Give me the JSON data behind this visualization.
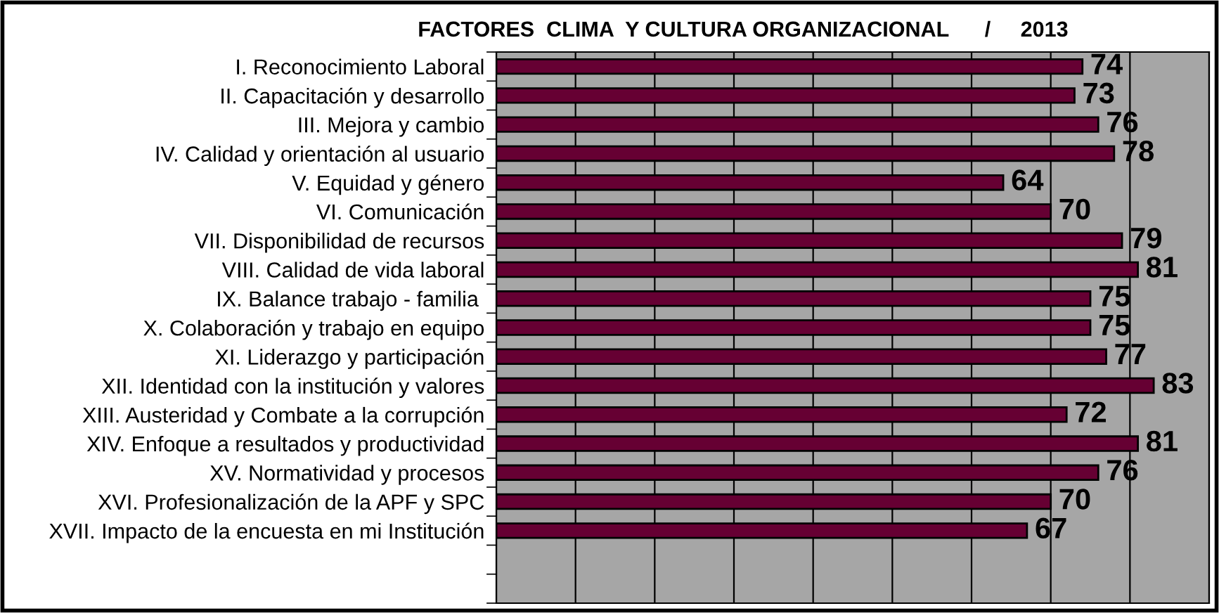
{
  "chart_data": {
    "type": "bar",
    "orientation": "horizontal",
    "title": "FACTORES  CLIMA  Y CULTURA ORGANIZACIONAL      /     2013",
    "categories": [
      "I. Reconocimiento Laboral",
      "II. Capacitación y desarrollo",
      "III. Mejora y cambio",
      "IV. Calidad y orientación al usuario",
      "V. Equidad y género",
      "VI. Comunicación",
      "VII. Disponibilidad de recursos",
      "VIII. Calidad de vida laboral",
      "IX. Balance trabajo - familia ",
      "X. Colaboración y trabajo en equipo",
      "XI. Liderazgo y participación",
      "XII. Identidad con la institución y valores",
      "XIII. Austeridad y Combate a la corrupción",
      "XIV. Enfoque a resultados y productividad",
      "XV. Normatividad y procesos",
      "XVI. Profesionalización de la APF y SPC",
      "XVII. Impacto de la encuesta en mi Institución",
      null,
      null
    ],
    "values": [
      74,
      73,
      76,
      78,
      64,
      70,
      79,
      81,
      75,
      75,
      77,
      83,
      72,
      81,
      76,
      70,
      67,
      null,
      null
    ],
    "color": "#660033",
    "data_labels": true,
    "grid": "x",
    "legend": false,
    "tick_labels": "y",
    "xlim": [
      0,
      90
    ],
    "xticks": [
      {
        "value": 0,
        "label": null
      },
      {
        "value": 10,
        "label": null
      },
      {
        "value": 20,
        "label": null
      },
      {
        "value": 30,
        "label": null
      },
      {
        "value": 40,
        "label": null
      },
      {
        "value": 50,
        "label": null
      },
      {
        "value": 60,
        "label": null
      },
      {
        "value": 70,
        "label": null
      },
      {
        "value": 80,
        "label": null
      },
      {
        "value": 90,
        "label": null
      }
    ]
  }
}
